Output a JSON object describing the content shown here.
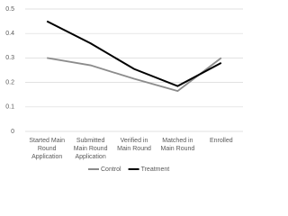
{
  "chart_data": {
    "type": "line",
    "categories": [
      "Started Main Round Application",
      "Submitted Main Round Application",
      "Verified in Main Round",
      "Matched in Main Round",
      "Enrolled"
    ],
    "series": [
      {
        "name": "Control",
        "color": "#8c8c8c",
        "values": [
          0.3,
          0.27,
          0.215,
          0.165,
          0.3
        ]
      },
      {
        "name": "Treatment",
        "color": "#000000",
        "values": [
          0.45,
          0.36,
          0.255,
          0.185,
          0.28
        ]
      }
    ],
    "ylim": [
      0,
      0.5
    ],
    "yticks": [
      0,
      0.1,
      0.2,
      0.3,
      0.4,
      0.5
    ],
    "grid": true,
    "legend": "bottom"
  }
}
